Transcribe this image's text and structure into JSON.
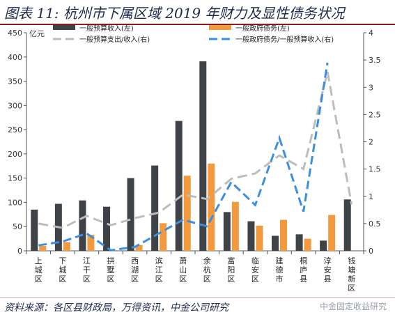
{
  "title": "图表 11: 杭州市下属区域 2019 年财力及显性债务状况",
  "source": "资料来源：各区县财政局，万得资讯，中金公司研究",
  "watermark": "中金固定收益研究",
  "colors": {
    "revenue": "#3f4247",
    "debt": "#f39a3f",
    "exp_ratio": "#bdbdbd",
    "debt_ratio": "#3b8fe0",
    "title": "#1c2a4a",
    "rule": "#8b1a1a"
  },
  "chart_data": {
    "type": "bar",
    "ylabel_left": "亿元",
    "ylim_left": [
      0,
      450
    ],
    "ylim_right": [
      0,
      4
    ],
    "yticks_left": [
      "0",
      "50",
      "100",
      "150",
      "200",
      "250",
      "300",
      "350",
      "400",
      "450"
    ],
    "yticks_right": [
      "0",
      "0.5",
      "1",
      "1.5",
      "2",
      "2.5",
      "3",
      "3.5",
      "4"
    ],
    "categories": [
      "上城区",
      "下城区",
      "江干区",
      "拱墅区",
      "西湖区",
      "滨江区",
      "萧山区",
      "余杭区",
      "富阳区",
      "临安区",
      "建德市",
      "桐庐县",
      "淳安县",
      "钱塘新区"
    ],
    "legend": [
      {
        "label": "一般预算收入(左)",
        "key": "revenue"
      },
      {
        "label": "一般政府债务(左)",
        "key": "debt"
      },
      {
        "label": "一般预算支出/收入(右)",
        "key": "exp_ratio"
      },
      {
        "label": "一般政府债务/一般预算收入(右)",
        "key": "debt_ratio"
      }
    ],
    "series": [
      {
        "key": "revenue",
        "axis": "left",
        "kind": "bar",
        "values": [
          85,
          97,
          104,
          91,
          150,
          176,
          268,
          391,
          80,
          61,
          31,
          34,
          21,
          106
        ]
      },
      {
        "key": "debt",
        "axis": "left",
        "kind": "bar",
        "values": [
          10,
          18,
          33,
          0,
          12,
          57,
          155,
          180,
          101,
          52,
          64,
          25,
          74,
          null
        ]
      },
      {
        "key": "exp_ratio",
        "axis": "right",
        "kind": "line",
        "style": "dashed",
        "values": [
          0.5,
          0.42,
          0.64,
          0.47,
          0.6,
          0.7,
          1.03,
          0.95,
          1.32,
          1.42,
          1.75,
          1.5,
          3.28,
          0.85
        ]
      },
      {
        "key": "debt_ratio",
        "axis": "right",
        "kind": "line",
        "style": "dashed",
        "values": [
          0.1,
          0.17,
          0.32,
          0.01,
          0.07,
          0.32,
          0.57,
          0.45,
          1.26,
          0.84,
          2.07,
          0.72,
          3.45,
          null
        ]
      }
    ]
  }
}
